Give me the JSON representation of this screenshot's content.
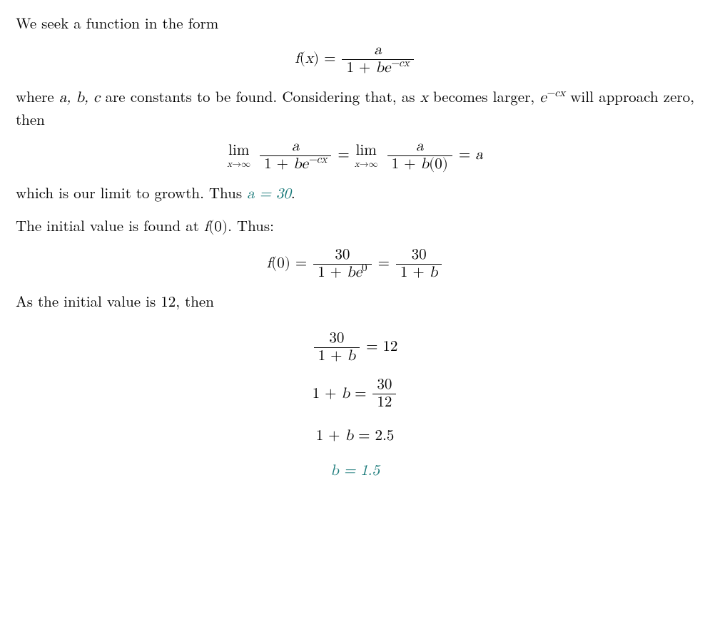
{
  "colors": {
    "text": "#000000",
    "background": "#ffffff",
    "accent": "#1a7a7a"
  },
  "typography": {
    "body_fontsize_pt": 16,
    "math_font": "Latin Modern Math / Computer Modern",
    "line_height": 1.35
  },
  "constants": {
    "a": 30,
    "initial_value": 12,
    "thirty_over_twelve": 2.5,
    "b": 1.5
  },
  "text": {
    "p1": "We seek a function in the form",
    "func_lhs": "f(x) = ",
    "frac_a_num": "a",
    "frac_a_den_pre": "1 + ",
    "frac_a_den_b": "b",
    "frac_a_den_e": "e",
    "frac_a_den_exp": "−cx",
    "p2_pre": "where ",
    "abc": "a, b, c",
    "p2_mid": " are constants to be found.  Considering that, as ",
    "x": "x",
    "p2_post": " becomes larger, ",
    "e": "e",
    "neg_cx": "−cx",
    "p2_end": " will approach zero, then",
    "lim_op": "lim",
    "lim_sub": "x→∞",
    "eq": " = ",
    "den_zero": "1 + b(0)",
    "eq_a": "a",
    "p3_pre": "which is our limit to growth. Thus ",
    "a_eq_30": "a = 30",
    "period": ".",
    "p4_pre": "The initial value is found at ",
    "f0": "f(0)",
    "p4_post": ". Thus:",
    "f0_eq": "f(0) = ",
    "num_30": "30",
    "den_be0_pre": "1 + ",
    "den_be0_b": "b",
    "den_be0_e": "e",
    "den_be0_exp": "0",
    "den_1b": "1 + b",
    "p5": "As the initial value is 12, then",
    "eq12": " = 12",
    "lhs_1b": "1 + b = ",
    "num_30b": "30",
    "den_12": "12",
    "rhs_25": "1 + b = 2.5",
    "b_eq_15": "b = 1.5"
  }
}
